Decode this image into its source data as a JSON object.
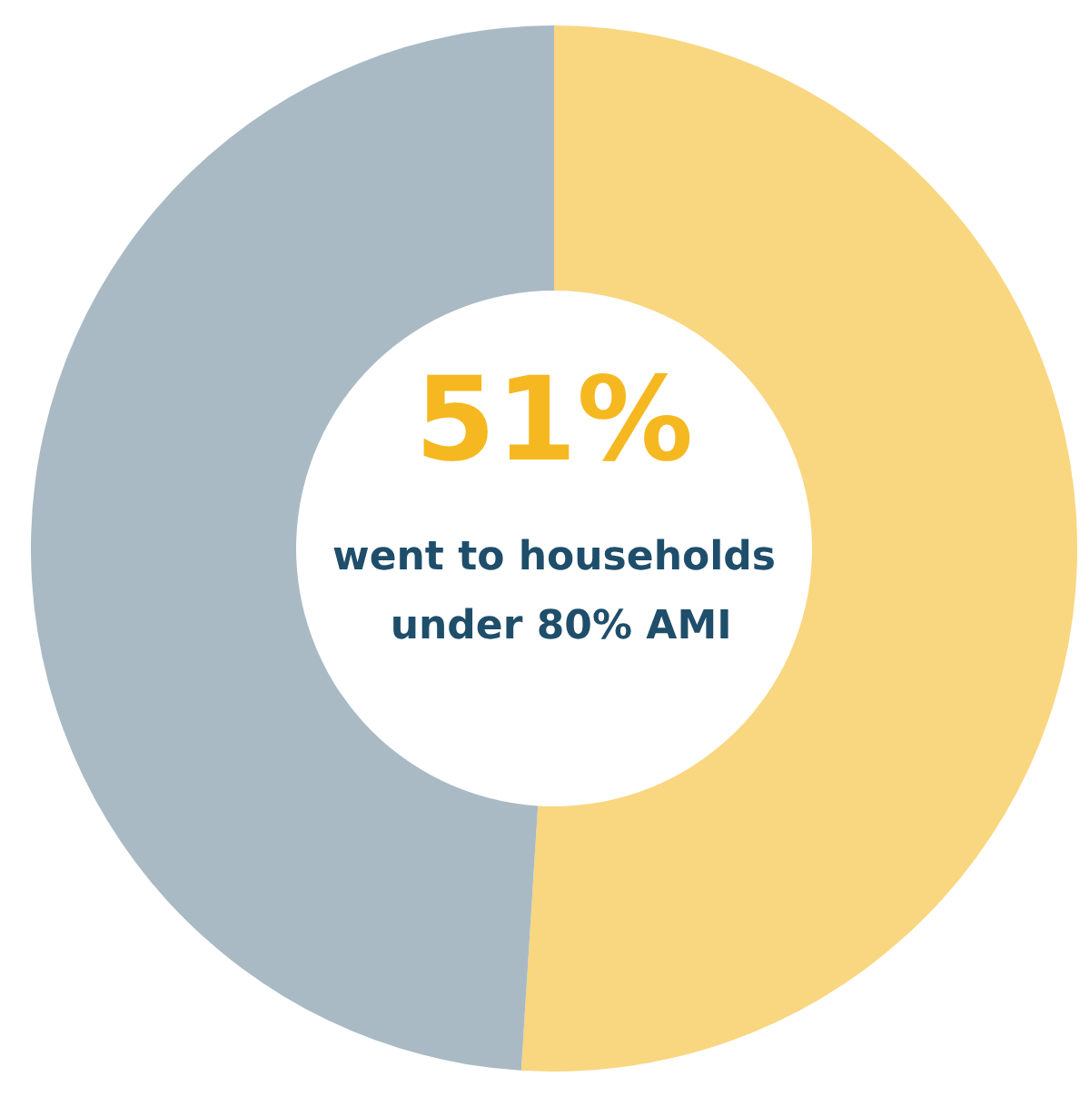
{
  "chart_data": {
    "type": "donut",
    "categories": [
      null,
      null
    ],
    "values": [
      51,
      49
    ],
    "colors": [
      "#f9d680",
      "#a9bac4"
    ],
    "value_labels": [
      "51%",
      null
    ],
    "annotations": [
      "went to households under 80% AMI"
    ]
  }
}
